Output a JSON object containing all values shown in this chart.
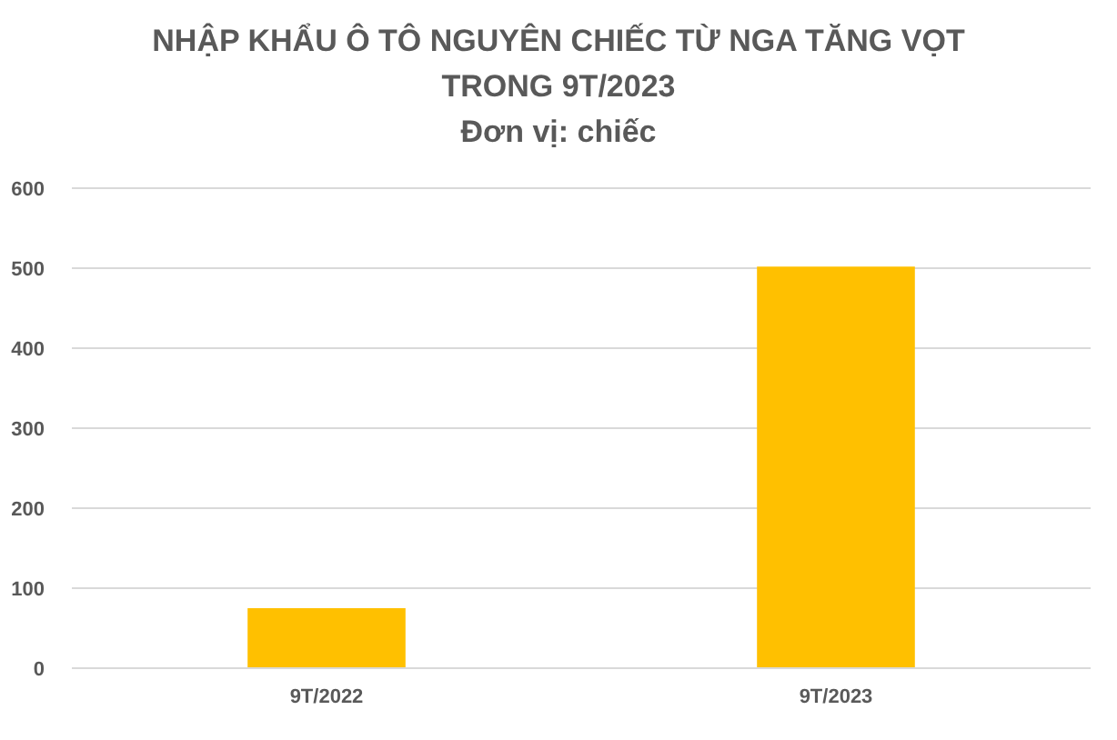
{
  "chart_data": {
    "type": "bar",
    "title": "NHẬP KHẨU Ô TÔ NGUYÊN CHIẾC TỪ NGA TĂNG VỌT TRONG 9T/2023",
    "subtitle": "Đơn vị: chiếc",
    "categories": [
      "9T/2022",
      "9T/2023"
    ],
    "values": [
      75,
      502
    ],
    "color": "#ffc000",
    "ylim": [
      0,
      600
    ],
    "yticks": [
      0,
      100,
      200,
      300,
      400,
      500,
      600
    ],
    "grid": "y"
  }
}
